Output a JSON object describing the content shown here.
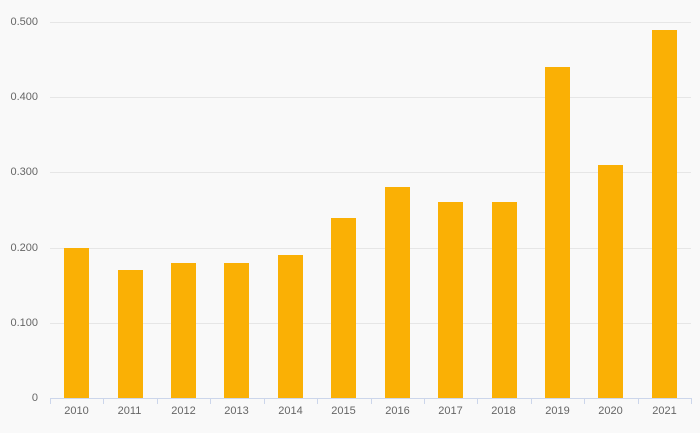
{
  "chart_data": {
    "type": "bar",
    "title": "",
    "xlabel": "",
    "ylabel": "",
    "categories": [
      "2010",
      "2011",
      "2012",
      "2013",
      "2014",
      "2015",
      "2016",
      "2017",
      "2018",
      "2019",
      "2020",
      "2021"
    ],
    "values": [
      0.2,
      0.17,
      0.18,
      0.18,
      0.19,
      0.24,
      0.28,
      0.26,
      0.26,
      0.44,
      0.31,
      0.49
    ],
    "ylim": [
      0,
      0.5
    ],
    "y_ticks": [
      {
        "value": 0.0,
        "label": "0"
      },
      {
        "value": 0.1,
        "label": "0.100"
      },
      {
        "value": 0.2,
        "label": "0.200"
      },
      {
        "value": 0.3,
        "label": "0.300"
      },
      {
        "value": 0.4,
        "label": "0.400"
      },
      {
        "value": 0.5,
        "label": "0.500"
      }
    ],
    "grid": true,
    "legend": false
  },
  "style": {
    "bar_color": "#fab005",
    "background_color": "#f9f9f9",
    "gridline_color": "#e6e6e6",
    "axis_line_color": "#ccd6eb",
    "label_color": "#666666"
  }
}
